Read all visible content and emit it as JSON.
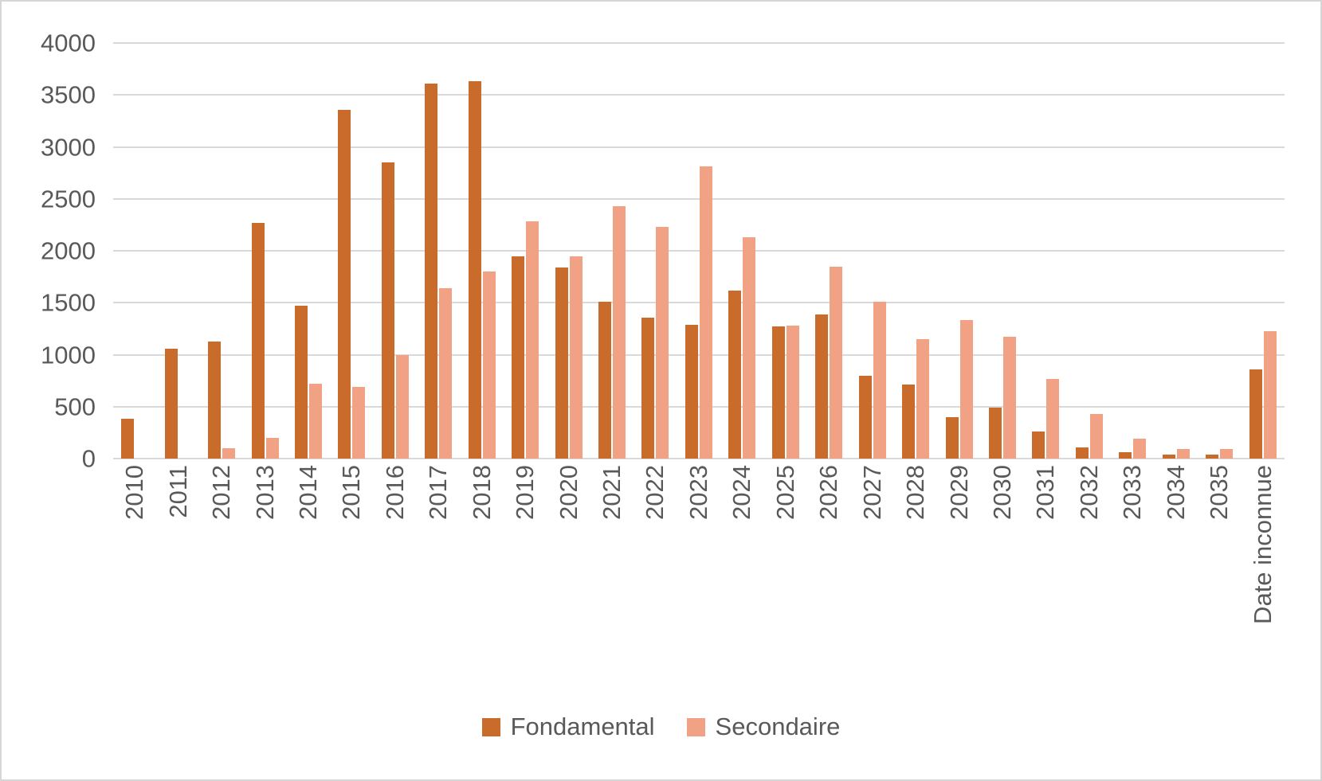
{
  "chart_data": {
    "type": "bar",
    "title": "",
    "xlabel": "",
    "ylabel": "",
    "categories": [
      "2010",
      "2011",
      "2012",
      "2013",
      "2014",
      "2015",
      "2016",
      "2017",
      "2018",
      "2019",
      "2020",
      "2021",
      "2022",
      "2023",
      "2024",
      "2025",
      "2026",
      "2027",
      "2028",
      "2029",
      "2030",
      "2031",
      "2032",
      "2033",
      "2034",
      "2035",
      "Date inconnue"
    ],
    "series": [
      {
        "name": "Fondamental",
        "color": "#C96B2B",
        "values": [
          380,
          1060,
          1130,
          2270,
          1470,
          3360,
          2850,
          3610,
          3630,
          1950,
          1840,
          1510,
          1360,
          1290,
          1620,
          1270,
          1390,
          800,
          710,
          400,
          490,
          260,
          110,
          60,
          40,
          40,
          860
        ]
      },
      {
        "name": "Secondaire",
        "color": "#F2A284",
        "values": [
          0,
          0,
          100,
          200,
          720,
          690,
          1000,
          1640,
          1800,
          2280,
          1950,
          2430,
          2230,
          2810,
          2130,
          1280,
          1850,
          1510,
          1150,
          1330,
          1170,
          770,
          430,
          190,
          90,
          90,
          1230
        ]
      }
    ],
    "ylim": [
      0,
      4000
    ],
    "yticks": [
      4000,
      3500,
      3000,
      2500,
      2000,
      1500,
      1000,
      500,
      0
    ],
    "grid": "horizontal",
    "gridline_color": "#D9D9D9",
    "axis_text_color": "#595959",
    "background_color": "#FFFFFF",
    "border_color": "#D6D6D6",
    "legend_position": "bottom",
    "legend": {
      "items": [
        {
          "label": "Fondamental",
          "color": "#C96B2B"
        },
        {
          "label": "Secondaire",
          "color": "#F2A284"
        }
      ]
    }
  }
}
